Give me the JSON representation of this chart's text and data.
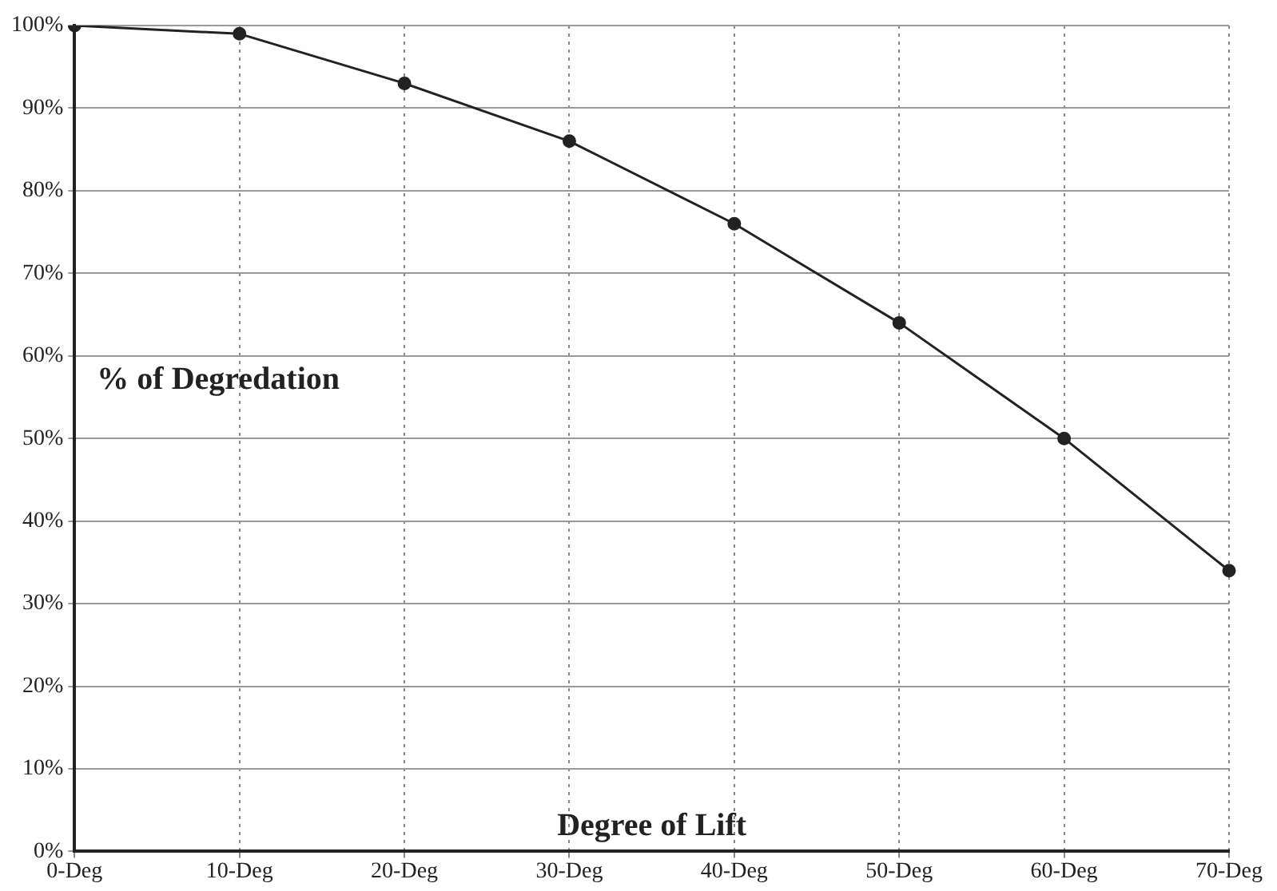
{
  "chart_data": {
    "type": "line",
    "xlabel": "Degree of Lift",
    "ylabel": "% of Degredation",
    "categories": [
      "0-Deg",
      "10-Deg",
      "20-Deg",
      "30-Deg",
      "40-Deg",
      "50-Deg",
      "60-Deg",
      "70-Deg"
    ],
    "series": [
      {
        "color": "#222222",
        "values": [
          100,
          99,
          93,
          86,
          76,
          64,
          50,
          34
        ]
      }
    ],
    "ylim": [
      0,
      100
    ],
    "yticks": [
      {
        "value": 0,
        "label": "0%"
      },
      {
        "value": 10,
        "label": "10%"
      },
      {
        "value": 20,
        "label": "20%"
      },
      {
        "value": 30,
        "label": "30%"
      },
      {
        "value": 40,
        "label": "40%"
      },
      {
        "value": 50,
        "label": "50%"
      },
      {
        "value": 60,
        "label": "60%"
      },
      {
        "value": 70,
        "label": "70%"
      },
      {
        "value": 80,
        "label": "80%"
      },
      {
        "value": 90,
        "label": "90%"
      },
      {
        "value": 100,
        "label": "100%"
      }
    ],
    "grid": true,
    "legend": false,
    "marker": "circle",
    "line_style": "solid"
  }
}
